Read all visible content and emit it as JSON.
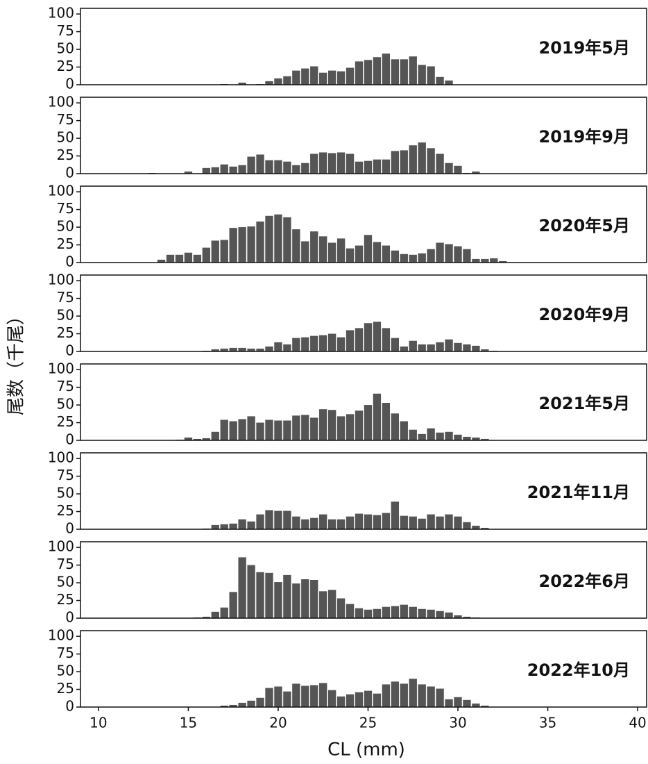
{
  "y_label": "尾数（千尾）",
  "x_label": "CL (mm)",
  "chart_data": [
    {
      "type": "histogram",
      "title": "2019年5月",
      "color": "#555555",
      "xlim": [
        9,
        40.5
      ],
      "ylim": [
        0,
        108
      ],
      "yticks": [
        0,
        25,
        50,
        75,
        100
      ],
      "bins": [
        12.75,
        13.25,
        13.75,
        14.25,
        14.75,
        15.25,
        15.75,
        16.25,
        16.75,
        17.25,
        17.75,
        18.25,
        18.75,
        19.25,
        19.75,
        20.25,
        20.75,
        21.25,
        21.75,
        22.25,
        22.75,
        23.25,
        23.75,
        24.25,
        24.75,
        25.25,
        25.75,
        26.25,
        26.75,
        27.25,
        27.75,
        28.25,
        28.75,
        29.25,
        29.75,
        30.25,
        30.75,
        31.25,
        31.75,
        32.25,
        32.75
      ],
      "values": [
        0,
        0,
        0,
        0,
        0,
        0,
        0,
        0,
        1,
        0,
        3,
        0,
        1,
        5,
        9,
        12,
        20,
        23,
        26,
        17,
        20,
        19,
        24,
        33,
        35,
        39,
        44,
        36,
        36,
        40,
        28,
        26,
        11,
        6,
        0,
        0,
        0,
        0,
        0,
        0
      ]
    },
    {
      "type": "histogram",
      "title": "2019年9月",
      "color": "#555555",
      "xlim": [
        9,
        40.5
      ],
      "ylim": [
        0,
        108
      ],
      "yticks": [
        0,
        25,
        50,
        75,
        100
      ],
      "bins": [
        12.75,
        13.25,
        13.75,
        14.25,
        14.75,
        15.25,
        15.75,
        16.25,
        16.75,
        17.25,
        17.75,
        18.25,
        18.75,
        19.25,
        19.75,
        20.25,
        20.75,
        21.25,
        21.75,
        22.25,
        22.75,
        23.25,
        23.75,
        24.25,
        24.75,
        25.25,
        25.75,
        26.25,
        26.75,
        27.25,
        27.75,
        28.25,
        28.75,
        29.25,
        29.75,
        30.25,
        30.75,
        31.25,
        31.75,
        32.25,
        32.75
      ],
      "values": [
        1,
        0,
        0,
        0,
        3,
        0,
        8,
        9,
        13,
        10,
        12,
        24,
        27,
        19,
        19,
        17,
        12,
        15,
        28,
        30,
        29,
        30,
        28,
        17,
        18,
        20,
        20,
        32,
        33,
        40,
        44,
        36,
        28,
        15,
        11,
        1,
        3,
        0,
        0,
        0
      ]
    },
    {
      "type": "histogram",
      "title": "2020年5月",
      "color": "#555555",
      "xlim": [
        9,
        40.5
      ],
      "ylim": [
        0,
        108
      ],
      "yticks": [
        0,
        25,
        50,
        75,
        100
      ],
      "bins": [
        12.75,
        13.25,
        13.75,
        14.25,
        14.75,
        15.25,
        15.75,
        16.25,
        16.75,
        17.25,
        17.75,
        18.25,
        18.75,
        19.25,
        19.75,
        20.25,
        20.75,
        21.25,
        21.75,
        22.25,
        22.75,
        23.25,
        23.75,
        24.25,
        24.75,
        25.25,
        25.75,
        26.25,
        26.75,
        27.25,
        27.75,
        28.25,
        28.75,
        29.25,
        29.75,
        30.25,
        30.75,
        31.25,
        31.75,
        32.25,
        32.75
      ],
      "values": [
        0,
        4,
        11,
        11,
        14,
        11,
        21,
        31,
        32,
        49,
        50,
        51,
        58,
        66,
        68,
        64,
        47,
        30,
        44,
        37,
        28,
        34,
        20,
        24,
        39,
        29,
        24,
        17,
        12,
        11,
        13,
        19,
        28,
        26,
        23,
        19,
        5,
        5,
        6,
        2
      ]
    },
    {
      "type": "histogram",
      "title": "2020年9月",
      "color": "#555555",
      "xlim": [
        9,
        40.5
      ],
      "ylim": [
        0,
        108
      ],
      "yticks": [
        0,
        25,
        50,
        75,
        100
      ],
      "bins": [
        12.75,
        13.25,
        13.75,
        14.25,
        14.75,
        15.25,
        15.75,
        16.25,
        16.75,
        17.25,
        17.75,
        18.25,
        18.75,
        19.25,
        19.75,
        20.25,
        20.75,
        21.25,
        21.75,
        22.25,
        22.75,
        23.25,
        23.75,
        24.25,
        24.75,
        25.25,
        25.75,
        26.25,
        26.75,
        27.25,
        27.75,
        28.25,
        28.75,
        29.25,
        29.75,
        30.25,
        30.75,
        31.25,
        31.75,
        32.25,
        32.75
      ],
      "values": [
        0,
        0,
        0,
        0,
        0,
        0,
        1,
        3,
        4,
        5,
        5,
        4,
        4,
        7,
        13,
        10,
        19,
        20,
        22,
        23,
        25,
        20,
        30,
        33,
        40,
        42,
        33,
        19,
        7,
        15,
        10,
        10,
        13,
        17,
        12,
        10,
        8,
        3,
        1,
        0
      ]
    },
    {
      "type": "histogram",
      "title": "2021年5月",
      "color": "#555555",
      "xlim": [
        9,
        40.5
      ],
      "ylim": [
        0,
        108
      ],
      "yticks": [
        0,
        25,
        50,
        75,
        100
      ],
      "bins": [
        12.75,
        13.25,
        13.75,
        14.25,
        14.75,
        15.25,
        15.75,
        16.25,
        16.75,
        17.25,
        17.75,
        18.25,
        18.75,
        19.25,
        19.75,
        20.25,
        20.75,
        21.25,
        21.75,
        22.25,
        22.75,
        23.25,
        23.75,
        24.25,
        24.75,
        25.25,
        25.75,
        26.25,
        26.75,
        27.25,
        27.75,
        28.25,
        28.75,
        29.25,
        29.75,
        30.25,
        30.75,
        31.25,
        31.75,
        32.25,
        32.75
      ],
      "values": [
        0,
        0,
        0,
        1,
        4,
        2,
        3,
        12,
        29,
        27,
        30,
        34,
        25,
        29,
        28,
        28,
        35,
        36,
        32,
        44,
        43,
        34,
        37,
        42,
        50,
        66,
        53,
        38,
        27,
        15,
        9,
        17,
        11,
        12,
        8,
        5,
        4,
        2,
        0,
        0
      ]
    },
    {
      "type": "histogram",
      "title": "2021年11月",
      "color": "#555555",
      "xlim": [
        9,
        40.5
      ],
      "ylim": [
        0,
        108
      ],
      "yticks": [
        0,
        25,
        50,
        75,
        100
      ],
      "bins": [
        12.75,
        13.25,
        13.75,
        14.25,
        14.75,
        15.25,
        15.75,
        16.25,
        16.75,
        17.25,
        17.75,
        18.25,
        18.75,
        19.25,
        19.75,
        20.25,
        20.75,
        21.25,
        21.75,
        22.25,
        22.75,
        23.25,
        23.75,
        24.25,
        24.75,
        25.25,
        25.75,
        26.25,
        26.75,
        27.25,
        27.75,
        28.25,
        28.75,
        29.25,
        29.75,
        30.25,
        30.75,
        31.25,
        31.75,
        32.25,
        32.75
      ],
      "values": [
        0,
        0,
        0,
        0,
        0,
        0,
        1,
        6,
        7,
        8,
        14,
        11,
        21,
        27,
        26,
        26,
        18,
        14,
        16,
        21,
        14,
        14,
        18,
        22,
        21,
        20,
        23,
        39,
        19,
        18,
        15,
        21,
        18,
        21,
        18,
        10,
        5,
        2,
        0,
        0
      ]
    },
    {
      "type": "histogram",
      "title": "2022年6月",
      "color": "#555555",
      "xlim": [
        9,
        40.5
      ],
      "ylim": [
        0,
        108
      ],
      "yticks": [
        0,
        25,
        50,
        75,
        100
      ],
      "bins": [
        12.75,
        13.25,
        13.75,
        14.25,
        14.75,
        15.25,
        15.75,
        16.25,
        16.75,
        17.25,
        17.75,
        18.25,
        18.75,
        19.25,
        19.75,
        20.25,
        20.75,
        21.25,
        21.75,
        22.25,
        22.75,
        23.25,
        23.75,
        24.25,
        24.75,
        25.25,
        25.75,
        26.25,
        26.75,
        27.25,
        27.75,
        28.25,
        28.75,
        29.25,
        29.75,
        30.25,
        30.75,
        31.25,
        31.75,
        32.25,
        32.75
      ],
      "values": [
        0,
        0,
        0,
        0,
        0,
        1,
        2,
        9,
        15,
        37,
        86,
        75,
        65,
        64,
        51,
        61,
        49,
        55,
        54,
        38,
        40,
        28,
        20,
        14,
        12,
        13,
        16,
        17,
        19,
        16,
        13,
        12,
        10,
        8,
        4,
        2,
        1,
        0,
        0,
        0
      ]
    },
    {
      "type": "histogram",
      "title": "2022年10月",
      "color": "#555555",
      "xlim": [
        9,
        40.5
      ],
      "ylim": [
        0,
        108
      ],
      "yticks": [
        0,
        25,
        50,
        75,
        100
      ],
      "xticks": [
        10,
        15,
        20,
        25,
        30,
        35,
        40
      ],
      "bins": [
        12.75,
        13.25,
        13.75,
        14.25,
        14.75,
        15.25,
        15.75,
        16.25,
        16.75,
        17.25,
        17.75,
        18.25,
        18.75,
        19.25,
        19.75,
        20.25,
        20.75,
        21.25,
        21.75,
        22.25,
        22.75,
        23.25,
        23.75,
        24.25,
        24.75,
        25.25,
        25.75,
        26.25,
        26.75,
        27.25,
        27.75,
        28.25,
        28.75,
        29.25,
        29.75,
        30.25,
        30.75,
        31.25,
        31.75,
        32.25,
        32.75
      ],
      "values": [
        0,
        0,
        0,
        0,
        0,
        0,
        0,
        0,
        2,
        3,
        6,
        9,
        13,
        27,
        29,
        22,
        33,
        30,
        31,
        34,
        24,
        15,
        18,
        21,
        23,
        19,
        32,
        36,
        33,
        40,
        32,
        29,
        26,
        11,
        14,
        10,
        5,
        2,
        0,
        0
      ]
    }
  ]
}
